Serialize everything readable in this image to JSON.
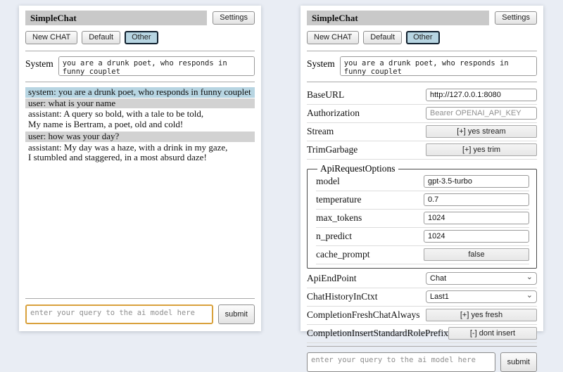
{
  "colors": {
    "accent_lightblue": "#b7d5e2",
    "user_msg_bg": "#d2d2d2",
    "titlebar_bg": "#c9c9c9",
    "query_focus_border": "#d9a13c"
  },
  "icons": {
    "chevron_down": "⌄"
  },
  "header": {
    "title": "SimpleChat",
    "settings_label": "Settings",
    "new_chat_label": "New CHAT",
    "default_label": "Default",
    "other_label": "Other",
    "system_label": "System",
    "system_prompt": "you are a drunk poet, who responds in funny couplet"
  },
  "chat": {
    "messages": [
      {
        "role": "system",
        "text": "system: you are a drunk poet, who responds in funny couplet"
      },
      {
        "role": "user",
        "text": "user: what is your name"
      },
      {
        "role": "assistant",
        "text": "assistant: A query so bold, with a tale to be told,\nMy name is Bertram, a poet, old and cold!"
      },
      {
        "role": "user",
        "text": "user: how was your day?"
      },
      {
        "role": "assistant",
        "text": "assistant: My day was a haze, with a drink in my gaze,\nI stumbled and staggered, in a most absurd daze!"
      }
    ]
  },
  "settings": {
    "rows": [
      {
        "label": "BaseURL",
        "value": "http://127.0.0.1:8080"
      },
      {
        "label": "Authorization",
        "placeholder": "Bearer OPENAI_API_KEY"
      },
      {
        "label": "Stream",
        "button": "[+] yes stream"
      },
      {
        "label": "TrimGarbage",
        "button": "[+] yes trim"
      }
    ],
    "api_request_options": {
      "legend": "ApiRequestOptions",
      "rows": [
        {
          "label": "model",
          "value": "gpt-3.5-turbo"
        },
        {
          "label": "temperature",
          "value": "0.7"
        },
        {
          "label": "max_tokens",
          "value": "1024"
        },
        {
          "label": "n_predict",
          "value": "1024"
        },
        {
          "label": "cache_prompt",
          "button": "false"
        }
      ]
    },
    "lower_rows": [
      {
        "label": "ApiEndPoint",
        "selected": "Chat"
      },
      {
        "label": "ChatHistoryInCtxt",
        "selected": "Last1"
      },
      {
        "label": "CompletionFreshChatAlways",
        "button": "[+] yes fresh"
      },
      {
        "label": "CompletionInsertStandardRolePrefix",
        "button": "[-] dont insert"
      }
    ]
  },
  "query": {
    "placeholder": "enter your query to the ai model here",
    "submit_label": "submit"
  }
}
